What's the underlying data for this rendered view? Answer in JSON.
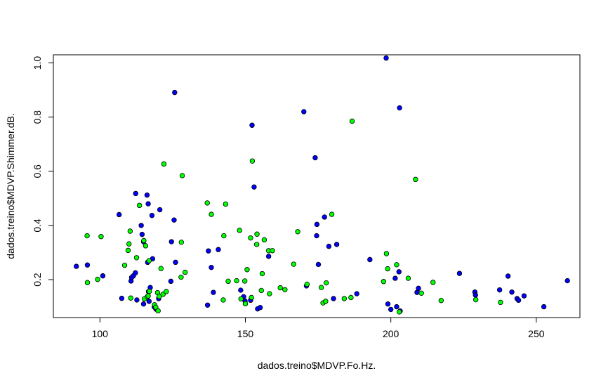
{
  "chart_data": {
    "type": "scatter",
    "title": "",
    "xlabel": "dados.treino$MDVP.Fo.Hz.",
    "ylabel": "dados.treino$MDVP.Shimmer.dB.",
    "xlim": [
      84,
      265
    ],
    "ylim": [
      0.06,
      1.03
    ],
    "xticks": [
      100,
      150,
      200,
      250
    ],
    "yticks": [
      0.2,
      0.4,
      0.6,
      0.8,
      1.0
    ],
    "xtick_labels": [
      "100",
      "150",
      "200",
      "250"
    ],
    "ytick_labels": [
      "0.2",
      "0.4",
      "0.6",
      "0.8",
      "1.0"
    ],
    "grid": false,
    "legend": "none",
    "series": [
      {
        "color": "#0000ff",
        "points": [
          [
            91.9,
            0.249
          ],
          [
            95.7,
            0.254
          ],
          [
            101.0,
            0.214
          ],
          [
            106.6,
            0.44
          ],
          [
            107.5,
            0.131
          ],
          [
            110.7,
            0.195
          ],
          [
            110.9,
            0.208
          ],
          [
            111.5,
            0.214
          ],
          [
            112.2,
            0.225
          ],
          [
            112.3,
            0.518
          ],
          [
            112.7,
            0.125
          ],
          [
            114.2,
            0.4
          ],
          [
            114.5,
            0.367
          ],
          [
            115.0,
            0.34
          ],
          [
            115.0,
            0.11
          ],
          [
            116.2,
            0.512
          ],
          [
            116.4,
            0.264
          ],
          [
            116.6,
            0.48
          ],
          [
            116.7,
            0.156
          ],
          [
            116.9,
            0.12
          ],
          [
            117.3,
            0.171
          ],
          [
            117.9,
            0.437
          ],
          [
            118.1,
            0.277
          ],
          [
            118.7,
            0.099
          ],
          [
            119.3,
            0.091
          ],
          [
            120.2,
            0.13
          ],
          [
            120.6,
            0.458
          ],
          [
            124.4,
            0.194
          ],
          [
            124.6,
            0.34
          ],
          [
            125.5,
            0.42
          ],
          [
            125.7,
            0.891
          ],
          [
            126.0,
            0.264
          ],
          [
            137.0,
            0.106
          ],
          [
            137.3,
            0.306
          ],
          [
            138.3,
            0.245
          ],
          [
            139.0,
            0.153
          ],
          [
            140.7,
            0.311
          ],
          [
            148.4,
            0.161
          ],
          [
            149.4,
            0.137
          ],
          [
            149.9,
            0.121
          ],
          [
            151.8,
            0.124
          ],
          [
            152.3,
            0.77
          ],
          [
            153.0,
            0.542
          ],
          [
            154.2,
            0.092
          ],
          [
            155.1,
            0.097
          ],
          [
            158.0,
            0.286
          ],
          [
            170.1,
            0.82
          ],
          [
            171.0,
            0.177
          ],
          [
            174.0,
            0.65
          ],
          [
            174.5,
            0.362
          ],
          [
            174.6,
            0.404
          ],
          [
            175.1,
            0.256
          ],
          [
            177.2,
            0.431
          ],
          [
            178.7,
            0.323
          ],
          [
            181.4,
            0.33
          ],
          [
            180.3,
            0.13
          ],
          [
            188.3,
            0.148
          ],
          [
            192.8,
            0.274
          ],
          [
            198.4,
            1.018
          ],
          [
            199.0,
            0.11
          ],
          [
            200.0,
            0.09
          ],
          [
            201.5,
            0.205
          ],
          [
            202.0,
            0.1
          ],
          [
            202.8,
            0.229
          ],
          [
            203.0,
            0.834
          ],
          [
            203.2,
            0.084
          ],
          [
            209.0,
            0.153
          ],
          [
            209.5,
            0.168
          ],
          [
            223.6,
            0.223
          ],
          [
            228.9,
            0.154
          ],
          [
            229.1,
            0.143
          ],
          [
            237.4,
            0.162
          ],
          [
            240.3,
            0.213
          ],
          [
            241.6,
            0.154
          ],
          [
            243.4,
            0.13
          ],
          [
            243.9,
            0.124
          ],
          [
            245.8,
            0.14
          ],
          [
            252.6,
            0.1
          ],
          [
            260.7,
            0.196
          ]
        ]
      },
      {
        "color": "#00ff00",
        "points": [
          [
            95.6,
            0.362
          ],
          [
            95.7,
            0.189
          ],
          [
            99.2,
            0.201
          ],
          [
            100.4,
            0.359
          ],
          [
            108.5,
            0.253
          ],
          [
            109.7,
            0.308
          ],
          [
            110.0,
            0.332
          ],
          [
            110.4,
            0.379
          ],
          [
            110.6,
            0.132
          ],
          [
            112.6,
            0.281
          ],
          [
            113.6,
            0.474
          ],
          [
            115.1,
            0.344
          ],
          [
            115.3,
            0.129
          ],
          [
            115.7,
            0.325
          ],
          [
            116.3,
            0.137
          ],
          [
            116.6,
            0.14
          ],
          [
            116.9,
            0.27
          ],
          [
            117.0,
            0.157
          ],
          [
            118.8,
            0.107
          ],
          [
            119.2,
            0.098
          ],
          [
            119.8,
            0.152
          ],
          [
            120.0,
            0.085
          ],
          [
            120.4,
            0.138
          ],
          [
            121.0,
            0.241
          ],
          [
            121.7,
            0.146
          ],
          [
            122.0,
            0.627
          ],
          [
            122.8,
            0.156
          ],
          [
            127.9,
            0.209
          ],
          [
            128.0,
            0.338
          ],
          [
            128.3,
            0.584
          ],
          [
            129.3,
            0.227
          ],
          [
            136.9,
            0.483
          ],
          [
            138.3,
            0.441
          ],
          [
            142.4,
            0.125
          ],
          [
            142.6,
            0.362
          ],
          [
            143.2,
            0.479
          ],
          [
            144.1,
            0.194
          ],
          [
            147.0,
            0.196
          ],
          [
            148.0,
            0.382
          ],
          [
            148.5,
            0.129
          ],
          [
            149.8,
            0.195
          ],
          [
            150.0,
            0.111
          ],
          [
            150.6,
            0.237
          ],
          [
            151.8,
            0.354
          ],
          [
            152.1,
            0.134
          ],
          [
            152.4,
            0.638
          ],
          [
            153.9,
            0.33
          ],
          [
            154.0,
            0.368
          ],
          [
            155.5,
            0.16
          ],
          [
            155.8,
            0.222
          ],
          [
            156.5,
            0.347
          ],
          [
            158.0,
            0.307
          ],
          [
            158.3,
            0.148
          ],
          [
            159.3,
            0.307
          ],
          [
            162.0,
            0.17
          ],
          [
            163.6,
            0.163
          ],
          [
            166.6,
            0.257
          ],
          [
            168.0,
            0.377
          ],
          [
            171.2,
            0.183
          ],
          [
            176.1,
            0.171
          ],
          [
            176.7,
            0.114
          ],
          [
            177.6,
            0.12
          ],
          [
            177.8,
            0.188
          ],
          [
            179.7,
            0.441
          ],
          [
            184.0,
            0.13
          ],
          [
            186.3,
            0.134
          ],
          [
            186.7,
            0.785
          ],
          [
            197.5,
            0.193
          ],
          [
            198.5,
            0.296
          ],
          [
            198.9,
            0.24
          ],
          [
            202.0,
            0.255
          ],
          [
            202.9,
            0.081
          ],
          [
            206.0,
            0.205
          ],
          [
            208.5,
            0.57
          ],
          [
            210.5,
            0.15
          ],
          [
            214.5,
            0.19
          ],
          [
            217.3,
            0.123
          ],
          [
            229.2,
            0.126
          ],
          [
            237.7,
            0.116
          ]
        ]
      }
    ]
  }
}
